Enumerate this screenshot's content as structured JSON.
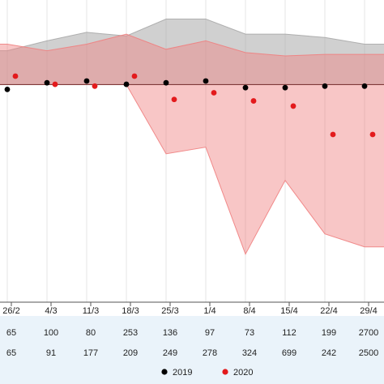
{
  "chart_data": {
    "type": "area",
    "categories": [
      "26/2",
      "4/3",
      "11/3",
      "18/3",
      "25/3",
      "1/4",
      "8/4",
      "15/4",
      "22/4",
      "29/4"
    ],
    "ylim": [
      0,
      1
    ],
    "grid": "vertical",
    "legend_position": "bottom-center",
    "reference_line": 0.72,
    "series": [
      {
        "name": "2019",
        "color": "#000000",
        "band_color": "#a9a9a9",
        "points": [
          0.704,
          0.726,
          0.732,
          0.721,
          0.726,
          0.732,
          0.71,
          0.71,
          0.715,
          0.715
        ],
        "band_upper": [
          0.832,
          0.865,
          0.893,
          0.881,
          0.937,
          0.937,
          0.887,
          0.887,
          0.876,
          0.854
        ],
        "band_lower": [
          0.72,
          0.72,
          0.72,
          0.72,
          0.72,
          0.72,
          0.72,
          0.72,
          0.72,
          0.72
        ]
      },
      {
        "name": "2020",
        "color": "#e31a1c",
        "band_color": "#f08080",
        "points": [
          0.748,
          0.721,
          0.715,
          0.748,
          0.671,
          0.693,
          0.666,
          0.649,
          0.555,
          0.555
        ],
        "band_upper": [
          0.854,
          0.832,
          0.854,
          0.887,
          0.837,
          0.865,
          0.826,
          0.815,
          0.82,
          0.82
        ],
        "band_lower": [
          0.72,
          0.72,
          0.72,
          0.72,
          0.491,
          0.513,
          0.159,
          0.403,
          0.226,
          0.183
        ]
      }
    ],
    "table_rows": [
      [
        "65",
        "100",
        "80",
        "253",
        "136",
        "97",
        "73",
        "112",
        "199",
        "2700"
      ],
      [
        "65",
        "91",
        "177",
        "209",
        "249",
        "278",
        "324",
        "699",
        "242",
        "2500"
      ]
    ]
  }
}
